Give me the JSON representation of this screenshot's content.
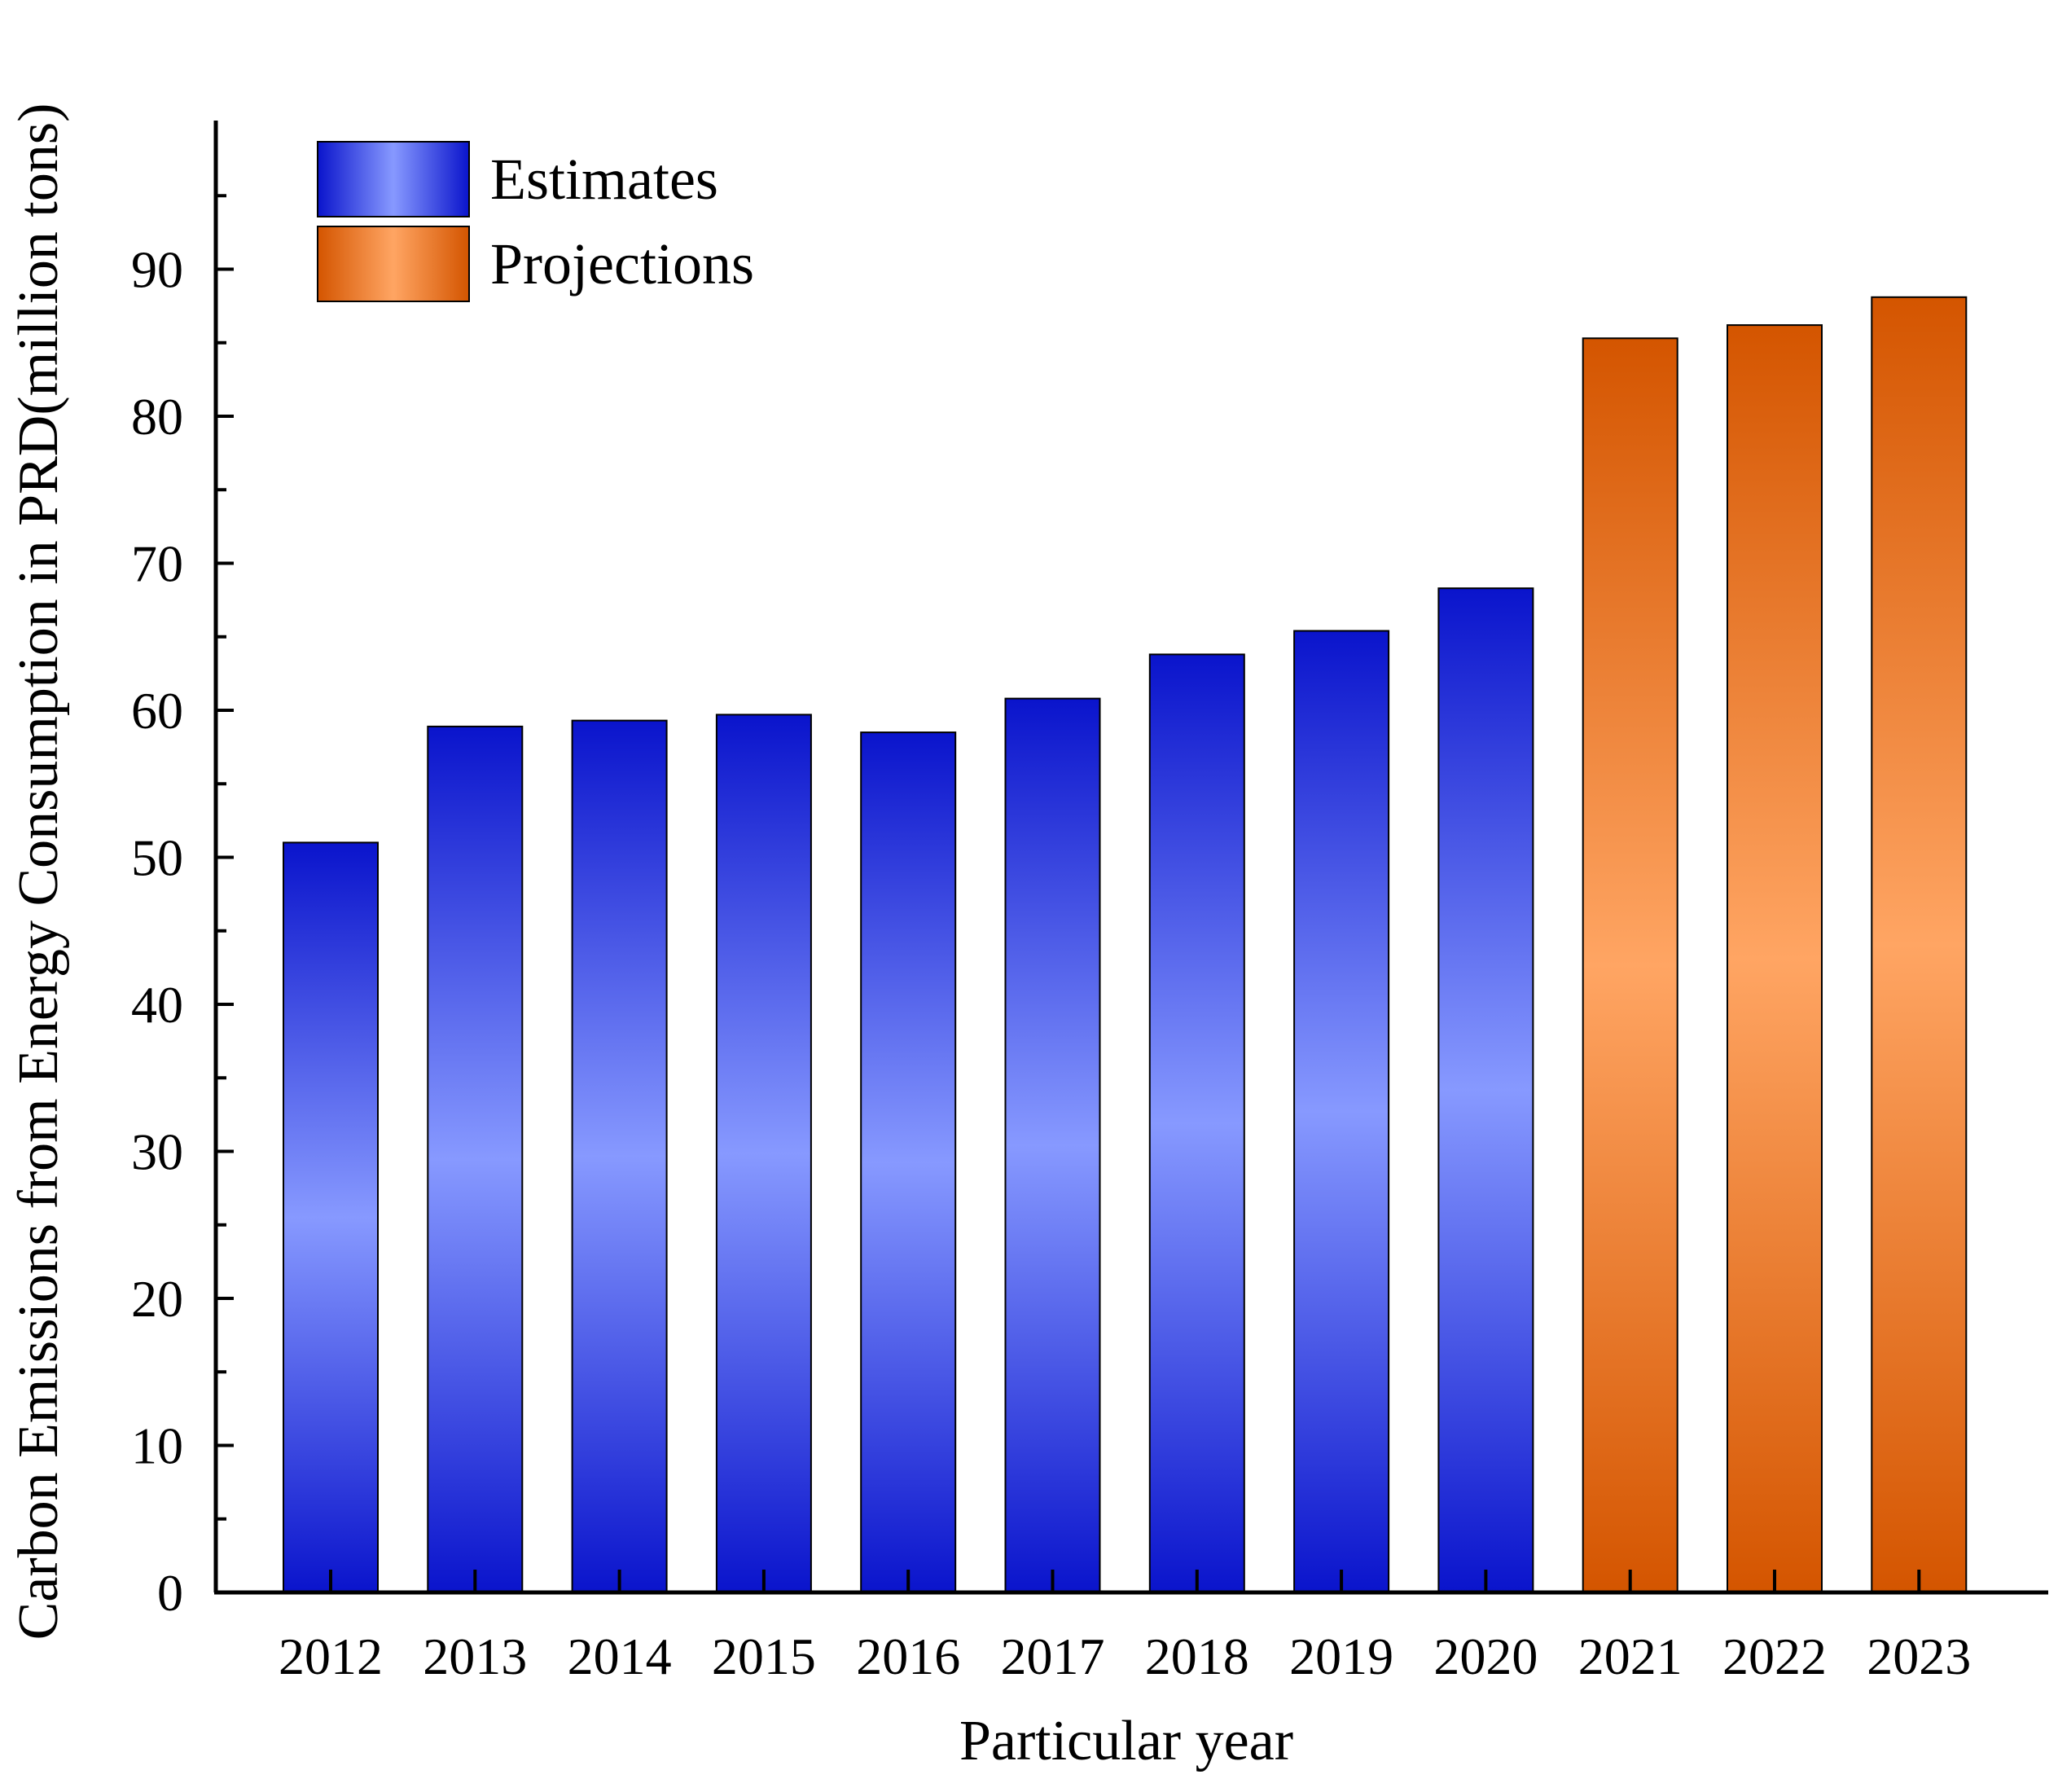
{
  "chart_data": {
    "type": "bar",
    "title": "",
    "xlabel": "Particular year",
    "ylabel": "Carbon Emissions from Energy Consumption in PRD(million tons)",
    "categories": [
      "2012",
      "2013",
      "2014",
      "2015",
      "2016",
      "2017",
      "2018",
      "2019",
      "2020",
      "2021",
      "2022",
      "2023"
    ],
    "ylim": [
      0,
      100
    ],
    "yticks": [
      0,
      10,
      20,
      30,
      40,
      50,
      60,
      70,
      80,
      90
    ],
    "ytick_labels": [
      "0",
      "10",
      "20",
      "30",
      "40",
      "50",
      "60",
      "70",
      "80",
      "90"
    ],
    "grid": false,
    "legend_position": "top-left",
    "series": [
      {
        "name": "Estimates",
        "color_dark": "#0a14cc",
        "color_light": "#8799ff",
        "values": [
          51.0,
          58.9,
          59.3,
          59.7,
          58.5,
          60.8,
          63.8,
          65.4,
          68.3,
          null,
          null,
          null
        ]
      },
      {
        "name": "Projections",
        "color_dark": "#d45500",
        "color_light": "#ffa563",
        "values": [
          null,
          null,
          null,
          null,
          null,
          null,
          null,
          null,
          null,
          85.3,
          86.2,
          88.1
        ]
      }
    ]
  }
}
